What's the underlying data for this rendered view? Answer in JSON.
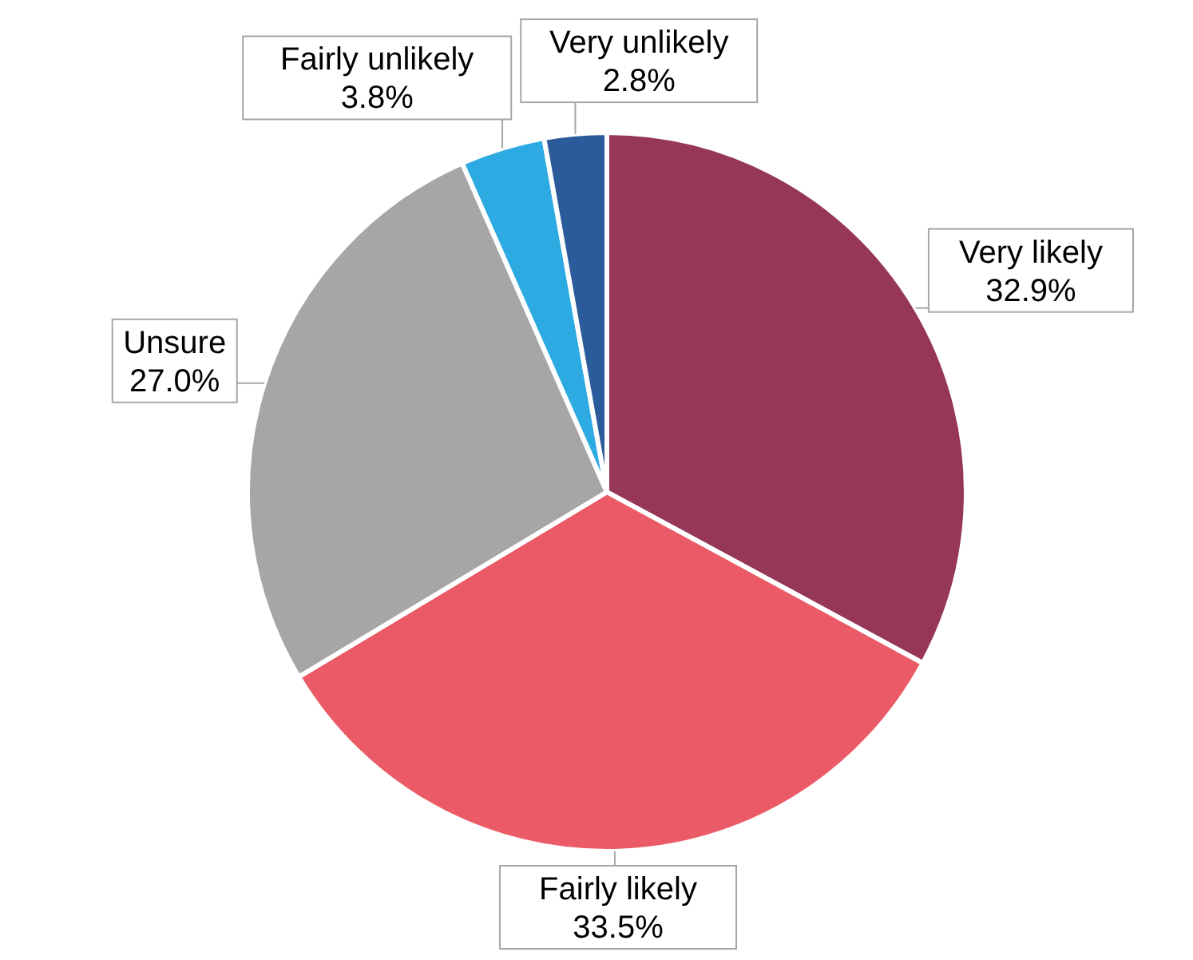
{
  "chart_data": {
    "type": "pie",
    "categories": [
      "Very likely",
      "Fairly likely",
      "Unsure",
      "Fairly unlikely",
      "Very unlikely"
    ],
    "values": [
      32.9,
      33.5,
      27.0,
      3.8,
      2.8
    ],
    "value_labels": [
      "32.9%",
      "33.5%",
      "27.0%",
      "3.8%",
      "2.8%"
    ],
    "colors": [
      "#963659",
      "#eb5b67",
      "#a6a6a6",
      "#2eaae3",
      "#2b5b9a"
    ]
  }
}
